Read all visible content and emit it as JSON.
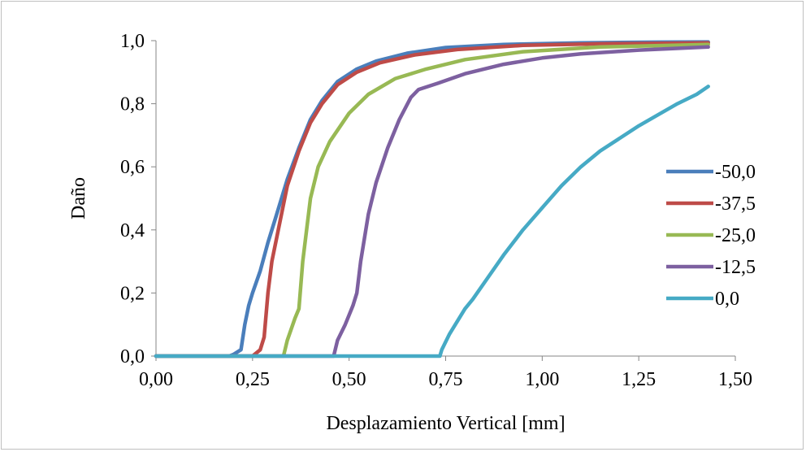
{
  "chart_data": {
    "type": "line",
    "title": "",
    "xlabel": "Desplazamiento Vertical [mm]",
    "ylabel": "Daño",
    "xlim": [
      0,
      1.5
    ],
    "ylim": [
      0,
      1.0
    ],
    "x_ticks": [
      "0,00",
      "0,25",
      "0,50",
      "0,75",
      "1,00",
      "1,25",
      "1,50"
    ],
    "y_ticks": [
      "0,0",
      "0,2",
      "0,4",
      "0,6",
      "0,8",
      "1,0"
    ],
    "grid": false,
    "legend_position": "right",
    "series": [
      {
        "name": "-50,0",
        "color": "#4a7ebb",
        "points": [
          [
            0,
            0
          ],
          [
            0.19,
            0
          ],
          [
            0.2,
            0.005
          ],
          [
            0.22,
            0.02
          ],
          [
            0.23,
            0.1
          ],
          [
            0.24,
            0.16
          ],
          [
            0.25,
            0.2
          ],
          [
            0.27,
            0.27
          ],
          [
            0.29,
            0.36
          ],
          [
            0.31,
            0.44
          ],
          [
            0.34,
            0.56
          ],
          [
            0.37,
            0.66
          ],
          [
            0.4,
            0.75
          ],
          [
            0.43,
            0.81
          ],
          [
            0.47,
            0.87
          ],
          [
            0.52,
            0.91
          ],
          [
            0.57,
            0.935
          ],
          [
            0.65,
            0.96
          ],
          [
            0.75,
            0.978
          ],
          [
            0.9,
            0.988
          ],
          [
            1.1,
            0.993
          ],
          [
            1.3,
            0.995
          ],
          [
            1.43,
            0.996
          ]
        ]
      },
      {
        "name": "-37,5",
        "color": "#be4b48",
        "points": [
          [
            0,
            0
          ],
          [
            0.25,
            0
          ],
          [
            0.27,
            0.02
          ],
          [
            0.28,
            0.06
          ],
          [
            0.29,
            0.2
          ],
          [
            0.3,
            0.3
          ],
          [
            0.32,
            0.42
          ],
          [
            0.34,
            0.54
          ],
          [
            0.37,
            0.65
          ],
          [
            0.4,
            0.74
          ],
          [
            0.43,
            0.8
          ],
          [
            0.47,
            0.86
          ],
          [
            0.52,
            0.9
          ],
          [
            0.58,
            0.93
          ],
          [
            0.67,
            0.955
          ],
          [
            0.78,
            0.972
          ],
          [
            0.95,
            0.985
          ],
          [
            1.15,
            0.99
          ],
          [
            1.43,
            0.993
          ]
        ]
      },
      {
        "name": "-25,0",
        "color": "#98b954",
        "points": [
          [
            0,
            0
          ],
          [
            0.33,
            0
          ],
          [
            0.34,
            0.05
          ],
          [
            0.36,
            0.12
          ],
          [
            0.37,
            0.15
          ],
          [
            0.38,
            0.3
          ],
          [
            0.4,
            0.5
          ],
          [
            0.42,
            0.6
          ],
          [
            0.45,
            0.68
          ],
          [
            0.5,
            0.77
          ],
          [
            0.55,
            0.83
          ],
          [
            0.62,
            0.88
          ],
          [
            0.7,
            0.91
          ],
          [
            0.8,
            0.94
          ],
          [
            0.95,
            0.965
          ],
          [
            1.15,
            0.98
          ],
          [
            1.43,
            0.988
          ]
        ]
      },
      {
        "name": "-12,5",
        "color": "#7d60a0",
        "points": [
          [
            0,
            0
          ],
          [
            0.46,
            0
          ],
          [
            0.47,
            0.05
          ],
          [
            0.49,
            0.1
          ],
          [
            0.51,
            0.16
          ],
          [
            0.52,
            0.2
          ],
          [
            0.53,
            0.3
          ],
          [
            0.55,
            0.45
          ],
          [
            0.57,
            0.55
          ],
          [
            0.6,
            0.66
          ],
          [
            0.63,
            0.75
          ],
          [
            0.66,
            0.82
          ],
          [
            0.68,
            0.845
          ],
          [
            0.73,
            0.865
          ],
          [
            0.8,
            0.895
          ],
          [
            0.9,
            0.925
          ],
          [
            1.0,
            0.945
          ],
          [
            1.1,
            0.958
          ],
          [
            1.25,
            0.97
          ],
          [
            1.43,
            0.98
          ]
        ]
      },
      {
        "name": "0,0",
        "color": "#46aac5",
        "points": [
          [
            0,
            0
          ],
          [
            0.3,
            0
          ],
          [
            0.53,
            0
          ],
          [
            0.735,
            0
          ],
          [
            0.74,
            0.02
          ],
          [
            0.76,
            0.07
          ],
          [
            0.8,
            0.15
          ],
          [
            0.82,
            0.18
          ],
          [
            0.86,
            0.25
          ],
          [
            0.9,
            0.32
          ],
          [
            0.95,
            0.4
          ],
          [
            1.0,
            0.47
          ],
          [
            1.05,
            0.54
          ],
          [
            1.1,
            0.6
          ],
          [
            1.15,
            0.65
          ],
          [
            1.2,
            0.69
          ],
          [
            1.25,
            0.73
          ],
          [
            1.3,
            0.765
          ],
          [
            1.35,
            0.8
          ],
          [
            1.4,
            0.83
          ],
          [
            1.43,
            0.855
          ]
        ]
      }
    ]
  }
}
